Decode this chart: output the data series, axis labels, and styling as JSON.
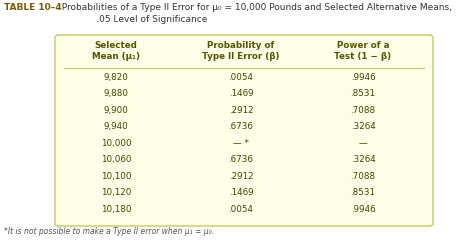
{
  "title_bold": "TABLE 10–4",
  "title_normal": "  Probabilities of a Type II Error for μ₀ = 10,000 Pounds and Selected Alternative Means,\n              .05 Level of Significance",
  "col_headers": [
    "Selected\nMean (μ₁)",
    "Probability of\nType II Error (β)",
    "Power of a\nTest (1 − β)"
  ],
  "rows": [
    [
      "9,820",
      ".0054",
      ".9946"
    ],
    [
      "9,880",
      ".1469",
      ".8531"
    ],
    [
      "9,900",
      ".2912",
      ".7088"
    ],
    [
      "9,940",
      ".6736",
      ".3264"
    ],
    [
      "10,000",
      "— *",
      "—"
    ],
    [
      "10,060",
      ".6736",
      ".3264"
    ],
    [
      "10,100",
      ".2912",
      ".7088"
    ],
    [
      "10,120",
      ".1469",
      ".8531"
    ],
    [
      "10,180",
      ".0054",
      ".9946"
    ]
  ],
  "footnote": "*It is not possible to make a Type II error when μ₁ = μ₀.",
  "table_bg": "#fefee8",
  "border_color": "#c8c864",
  "header_color": "#555500",
  "title_bold_color": "#7a5800",
  "title_normal_color": "#333333",
  "body_text_color": "#444400",
  "footnote_color": "#555555",
  "fig_bg": "#ffffff"
}
